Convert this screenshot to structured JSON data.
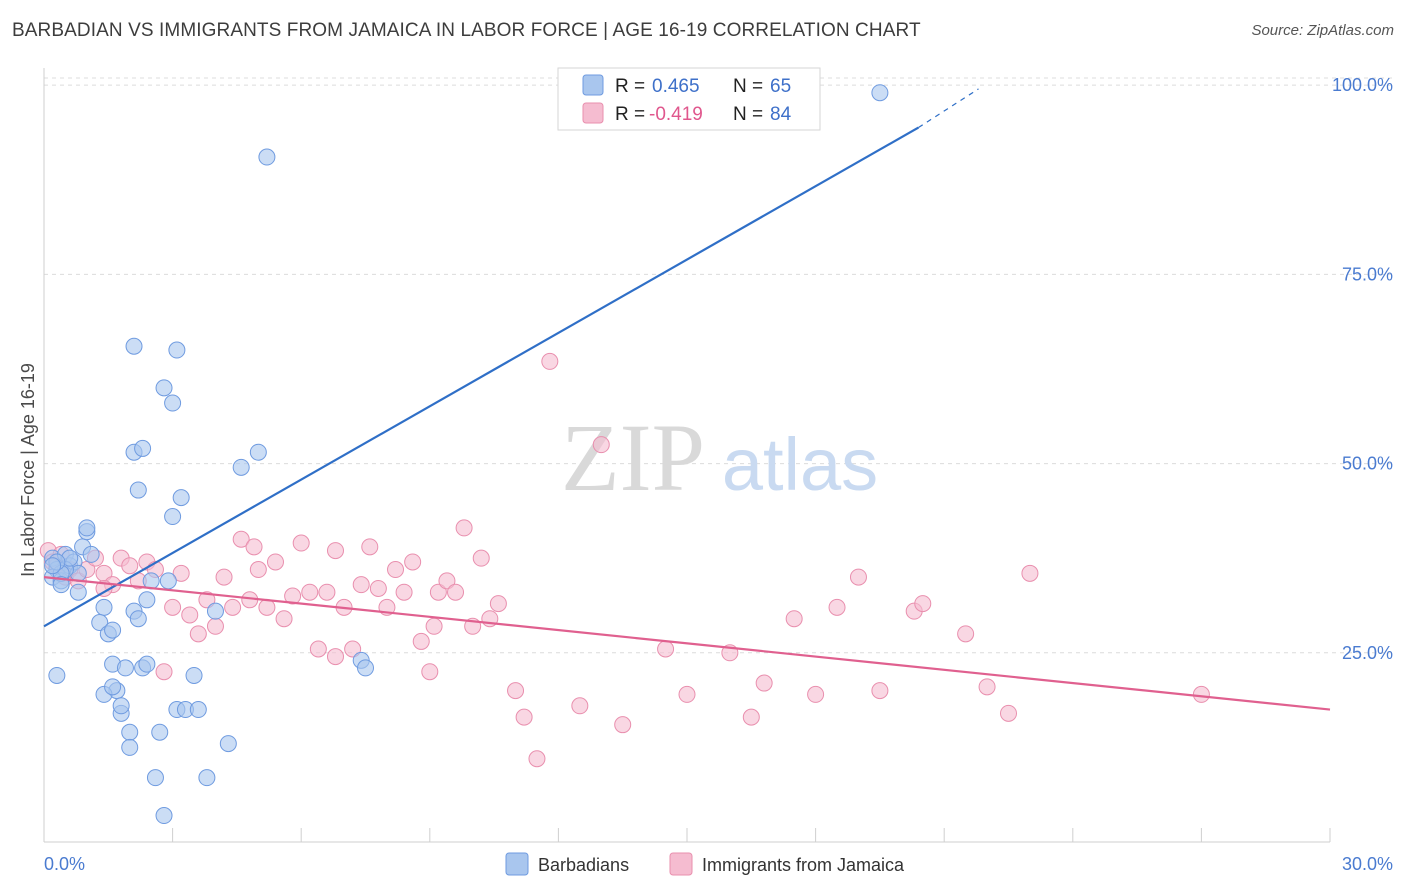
{
  "title": "BARBADIAN VS IMMIGRANTS FROM JAMAICA IN LABOR FORCE | AGE 16-19 CORRELATION CHART",
  "source": "Source: ZipAtlas.com",
  "watermark": {
    "zip": "ZIP",
    "atlas": "atlas"
  },
  "colors": {
    "blue_fill": "#a9c6ee",
    "blue_stroke": "#6f9be0",
    "blue_line": "#2f6fc7",
    "pink_fill": "#f5bcd0",
    "pink_stroke": "#e98fae",
    "pink_line": "#e0608f",
    "grid": "#dcdcdc",
    "tick_text": "#4a7bd0"
  },
  "stats_box": {
    "rows": [
      {
        "r_label": "R =",
        "r_value": "0.465",
        "n_label": "N =",
        "n_value": "65"
      },
      {
        "r_label": "R =",
        "r_value": "-0.419",
        "n_label": "N =",
        "n_value": "84"
      }
    ]
  },
  "chart_data": {
    "type": "scatter",
    "title": "BARBADIAN VS IMMIGRANTS FROM JAMAICA IN LABOR FORCE | AGE 16-19 CORRELATION CHART",
    "xlabel": "",
    "ylabel": "In Labor Force | Age 16-19",
    "xlim": [
      0,
      30
    ],
    "ylim": [
      0,
      102
    ],
    "x_tick_labels": [
      "0.0%",
      "30.0%"
    ],
    "y_ticks": [
      25,
      50,
      75,
      100
    ],
    "y_tick_labels": [
      "25.0%",
      "50.0%",
      "75.0%",
      "100.0%"
    ],
    "grid": true,
    "legend": [
      "Barbadians",
      "Immigrants from Jamaica"
    ],
    "series": [
      {
        "name": "Barbadians",
        "trend": {
          "x0": 0,
          "y0": 28.5,
          "x1": 20.4,
          "y1": 94.4,
          "dash_x1": 21.8,
          "dash_y1": 99.5
        },
        "points": [
          [
            0.2,
            37.5
          ],
          [
            0.3,
            36.0
          ],
          [
            0.2,
            35.0
          ],
          [
            0.4,
            34.5
          ],
          [
            0.5,
            38.0
          ],
          [
            0.6,
            36.5
          ],
          [
            0.7,
            37.0
          ],
          [
            0.8,
            33.0
          ],
          [
            0.3,
            22.0
          ],
          [
            0.9,
            39.0
          ],
          [
            1.0,
            41.0
          ],
          [
            1.1,
            38.0
          ],
          [
            0.8,
            35.5
          ],
          [
            0.5,
            36.0
          ],
          [
            0.6,
            37.5
          ],
          [
            0.4,
            35.5
          ],
          [
            1.4,
            31.0
          ],
          [
            1.3,
            29.0
          ],
          [
            1.5,
            27.5
          ],
          [
            1.6,
            23.5
          ],
          [
            1.7,
            20.0
          ],
          [
            1.8,
            17.0
          ],
          [
            1.9,
            23.0
          ],
          [
            2.0,
            14.5
          ],
          [
            2.1,
            30.5
          ],
          [
            2.2,
            46.5
          ],
          [
            1.6,
            28.0
          ],
          [
            1.8,
            18.0
          ],
          [
            2.0,
            12.5
          ],
          [
            2.3,
            23.0
          ],
          [
            2.4,
            23.5
          ],
          [
            2.6,
            8.5
          ],
          [
            2.7,
            14.5
          ],
          [
            2.8,
            3.5
          ],
          [
            2.9,
            34.5
          ],
          [
            3.0,
            43.0
          ],
          [
            2.5,
            34.5
          ],
          [
            3.1,
            17.5
          ],
          [
            3.3,
            17.5
          ],
          [
            2.2,
            29.5
          ],
          [
            2.1,
            65.5
          ],
          [
            2.8,
            60.0
          ],
          [
            3.0,
            58.0
          ],
          [
            3.1,
            65.0
          ],
          [
            2.1,
            51.5
          ],
          [
            2.3,
            52.0
          ],
          [
            3.2,
            45.5
          ],
          [
            1.4,
            19.5
          ],
          [
            1.6,
            20.5
          ],
          [
            1.0,
            41.5
          ],
          [
            3.5,
            22.0
          ],
          [
            3.6,
            17.5
          ],
          [
            3.8,
            8.5
          ],
          [
            4.0,
            30.5
          ],
          [
            4.3,
            13.0
          ],
          [
            4.6,
            49.5
          ],
          [
            5.0,
            51.5
          ],
          [
            5.2,
            90.5
          ],
          [
            7.4,
            24.0
          ],
          [
            7.5,
            23.0
          ],
          [
            2.4,
            32.0
          ],
          [
            0.3,
            37.0
          ],
          [
            0.4,
            34.0
          ],
          [
            19.5,
            99.0
          ],
          [
            0.2,
            36.5
          ]
        ]
      },
      {
        "name": "Immigrants from Jamaica",
        "trend": {
          "x0": 0,
          "y0": 35.0,
          "x1": 30,
          "y1": 17.5
        },
        "points": [
          [
            0.1,
            38.5
          ],
          [
            0.2,
            37.0
          ],
          [
            0.3,
            36.5
          ],
          [
            0.4,
            38.0
          ],
          [
            0.5,
            35.0
          ],
          [
            0.6,
            36.0
          ],
          [
            0.8,
            34.5
          ],
          [
            1.0,
            36.0
          ],
          [
            1.2,
            37.5
          ],
          [
            1.4,
            35.5
          ],
          [
            1.6,
            34.0
          ],
          [
            1.8,
            37.5
          ],
          [
            2.0,
            36.5
          ],
          [
            2.2,
            34.5
          ],
          [
            2.4,
            37.0
          ],
          [
            2.6,
            36.0
          ],
          [
            2.8,
            22.5
          ],
          [
            3.0,
            31.0
          ],
          [
            3.2,
            35.5
          ],
          [
            3.4,
            30.0
          ],
          [
            3.6,
            27.5
          ],
          [
            3.8,
            32.0
          ],
          [
            4.0,
            28.5
          ],
          [
            4.2,
            35.0
          ],
          [
            4.4,
            31.0
          ],
          [
            4.6,
            40.0
          ],
          [
            4.8,
            32.0
          ],
          [
            5.0,
            36.0
          ],
          [
            5.2,
            31.0
          ],
          [
            5.4,
            37.0
          ],
          [
            5.6,
            29.5
          ],
          [
            5.8,
            32.5
          ],
          [
            6.0,
            39.5
          ],
          [
            6.2,
            33.0
          ],
          [
            6.4,
            25.5
          ],
          [
            6.6,
            33.0
          ],
          [
            6.8,
            24.5
          ],
          [
            7.0,
            31.0
          ],
          [
            7.2,
            25.5
          ],
          [
            7.4,
            34.0
          ],
          [
            7.6,
            39.0
          ],
          [
            7.8,
            33.5
          ],
          [
            8.0,
            31.0
          ],
          [
            8.2,
            36.0
          ],
          [
            8.4,
            33.0
          ],
          [
            8.6,
            37.0
          ],
          [
            8.8,
            26.5
          ],
          [
            9.0,
            22.5
          ],
          [
            9.2,
            33.0
          ],
          [
            9.4,
            34.5
          ],
          [
            9.6,
            33.0
          ],
          [
            9.8,
            41.5
          ],
          [
            10.0,
            28.5
          ],
          [
            10.2,
            37.5
          ],
          [
            10.4,
            29.5
          ],
          [
            10.6,
            31.5
          ],
          [
            11.0,
            20.0
          ],
          [
            11.2,
            16.5
          ],
          [
            11.5,
            11.0
          ],
          [
            11.8,
            63.5
          ],
          [
            12.5,
            18.0
          ],
          [
            13.0,
            52.5
          ],
          [
            13.5,
            15.5
          ],
          [
            14.5,
            25.5
          ],
          [
            15.0,
            19.5
          ],
          [
            16.0,
            25.0
          ],
          [
            16.5,
            16.5
          ],
          [
            16.8,
            21.0
          ],
          [
            17.5,
            29.5
          ],
          [
            18.0,
            19.5
          ],
          [
            18.5,
            31.0
          ],
          [
            19.0,
            35.0
          ],
          [
            19.5,
            20.0
          ],
          [
            20.3,
            30.5
          ],
          [
            20.5,
            31.5
          ],
          [
            21.5,
            27.5
          ],
          [
            22.0,
            20.5
          ],
          [
            22.5,
            17.0
          ],
          [
            23.0,
            35.5
          ],
          [
            27.0,
            19.5
          ],
          [
            4.9,
            39.0
          ],
          [
            6.8,
            38.5
          ],
          [
            9.1,
            28.5
          ],
          [
            1.4,
            33.5
          ]
        ]
      }
    ]
  }
}
